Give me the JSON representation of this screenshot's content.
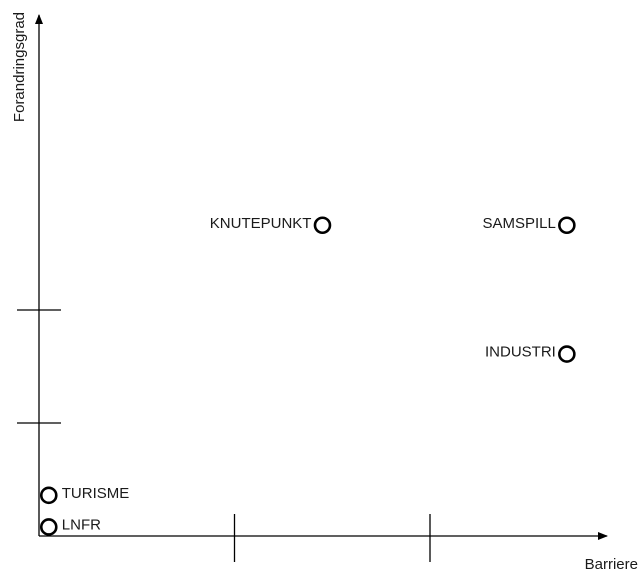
{
  "chart_data": {
    "type": "scatter",
    "title": "",
    "xlabel": "Barriere",
    "ylabel": "Forandringsgrad",
    "xlim": [
      0,
      3
    ],
    "ylim": [
      0,
      3
    ],
    "x_ticks": [
      1,
      2
    ],
    "y_ticks": [
      1,
      2
    ],
    "grid": false,
    "points": [
      {
        "label": "KNUTEPUNKT",
        "x": 1.45,
        "y": 2.75,
        "label_side": "left"
      },
      {
        "label": "SAMSPILL",
        "x": 2.7,
        "y": 2.75,
        "label_side": "left"
      },
      {
        "label": "INDUSTRI",
        "x": 2.7,
        "y": 1.61,
        "label_side": "left"
      },
      {
        "label": "TURISME",
        "x": 0.05,
        "y": 0.36,
        "label_side": "right"
      },
      {
        "label": "LNFR",
        "x": 0.05,
        "y": 0.08,
        "label_side": "right"
      }
    ]
  }
}
